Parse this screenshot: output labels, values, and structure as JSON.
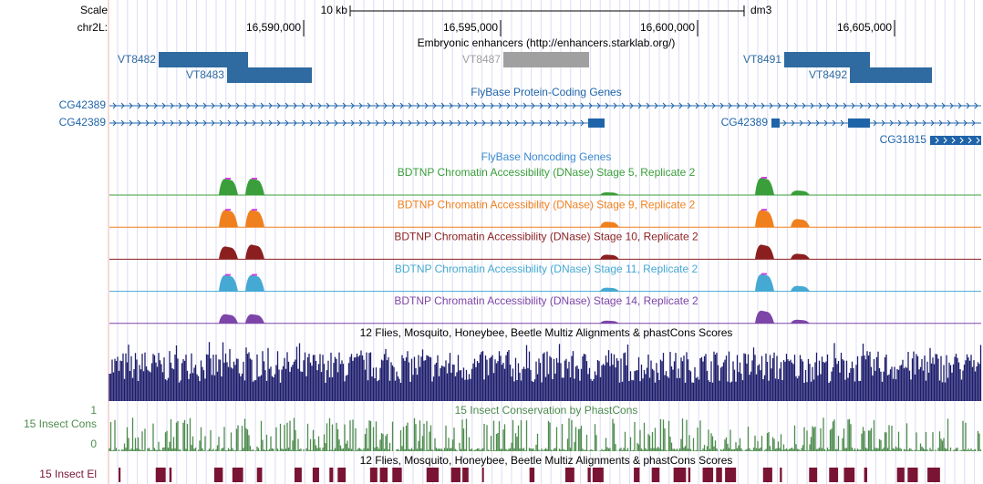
{
  "header": {
    "scale_label": "Scale",
    "scale_bar": "10 kb",
    "assembly": "dm3",
    "chrom_label": "chr2L:",
    "xlim": [
      16585069,
      16607199
    ],
    "scale_bar_range": [
      16591180,
      16601180
    ],
    "xticks": [
      {
        "value": 16590000,
        "label": "16,590,000"
      },
      {
        "value": 16595000,
        "label": "16,595,000"
      },
      {
        "value": 16600000,
        "label": "16,600,000"
      },
      {
        "value": 16605000,
        "label": "16,605,000"
      }
    ]
  },
  "enhancers": {
    "title": "Embryonic enhancers (http://enhancers.starklab.org/)",
    "features": [
      {
        "name": "VT8482",
        "start": 16586319,
        "end": 16588588,
        "color": "#2f6aa0"
      },
      {
        "name": "VT8483",
        "start": 16588055,
        "end": 16590208,
        "color": "#2f6aa0"
      },
      {
        "name": "VT8487",
        "start": 16595069,
        "end": 16597245,
        "color": "#a0a0a0"
      },
      {
        "name": "VT8491",
        "start": 16602199,
        "end": 16604375,
        "color": "#2f6aa0"
      },
      {
        "name": "VT8492",
        "start": 16603866,
        "end": 16605949,
        "color": "#2f6aa0"
      }
    ]
  },
  "genes": {
    "title": "FlyBase Protein-Coding Genes",
    "color": "#1f64a8",
    "features": [
      {
        "name": "CG42389",
        "start": 16585069,
        "end": 16607199,
        "exons": []
      },
      {
        "name": "CG42389",
        "start": 16585069,
        "end": 16597638,
        "exons": [
          [
            16597222,
            16597638
          ]
        ]
      },
      {
        "name": "CG42389",
        "start": 16601875,
        "end": 16607199,
        "exons": [
          [
            16601875,
            16602083
          ],
          [
            16603819,
            16604375
          ]
        ]
      },
      {
        "name": "CG31815",
        "start": 16605902,
        "end": 16607199,
        "exons": [
          [
            16605902,
            16607199
          ]
        ]
      }
    ]
  },
  "noncoding": {
    "title": "FlyBase Noncoding Genes"
  },
  "dnase": {
    "peak_positions": [
      16588078,
      16588750,
      16597754,
      16601690,
      16602593
    ],
    "tracks": [
      {
        "title": "BDTNP Chromatin Accessibility (DNase) Stage 5, Replicate 2",
        "color": "#3a9e3a",
        "heights": [
          0.9,
          0.9,
          0.15,
          0.95,
          0.25
        ]
      },
      {
        "title": "BDTNP Chromatin Accessibility (DNase) Stage 9, Replicate 2",
        "color": "#f0801e",
        "heights": [
          0.95,
          0.95,
          0.3,
          0.95,
          0.45
        ]
      },
      {
        "title": "BDTNP Chromatin Accessibility (DNase) Stage 10, Replicate 2",
        "color": "#8b1f1f",
        "heights": [
          0.7,
          0.8,
          0.25,
          0.8,
          0.3
        ]
      },
      {
        "title": "BDTNP Chromatin Accessibility (DNase) Stage 11, Replicate 2",
        "color": "#45a9d3",
        "heights": [
          0.9,
          0.9,
          0.2,
          0.95,
          0.3
        ]
      },
      {
        "title": "BDTNP Chromatin Accessibility (DNase) Stage 14, Replicate 2",
        "color": "#7d45a8",
        "heights": [
          0.5,
          0.5,
          0.15,
          0.7,
          0.2
        ]
      }
    ]
  },
  "multiz": {
    "title": "12 Flies, Mosquito, Honeybee, Beetle Multiz Alignments & phastCons Scores",
    "color": "#1c1c6c"
  },
  "cons": {
    "title": "15 Insect Conservation by PhastCons",
    "label": "15 Insect Cons",
    "yticks": [
      {
        "value": 1,
        "label": "1"
      },
      {
        "value": 0,
        "label": "0"
      }
    ],
    "color": "#4e8c4e"
  },
  "elements": {
    "title": "12 Flies, Mosquito, Honeybee, Beetle Multiz Alignments & phastCons Scores",
    "label": "15 Insect El",
    "color": "#7a1434"
  }
}
